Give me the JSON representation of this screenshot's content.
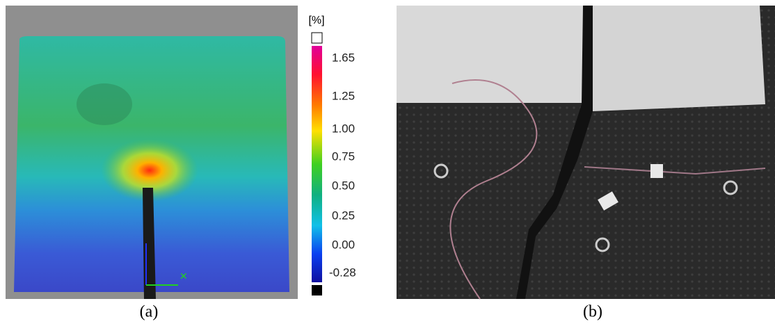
{
  "figure": {
    "panel_a": {
      "colorbar": {
        "unit": "[%]",
        "labels": [
          "1.65",
          "1.25",
          "1.00",
          "0.75",
          "0.50",
          "0.25",
          "0.00",
          "-0.28"
        ]
      },
      "caption": "(a)"
    },
    "panel_b": {
      "caption": "(b)"
    }
  }
}
